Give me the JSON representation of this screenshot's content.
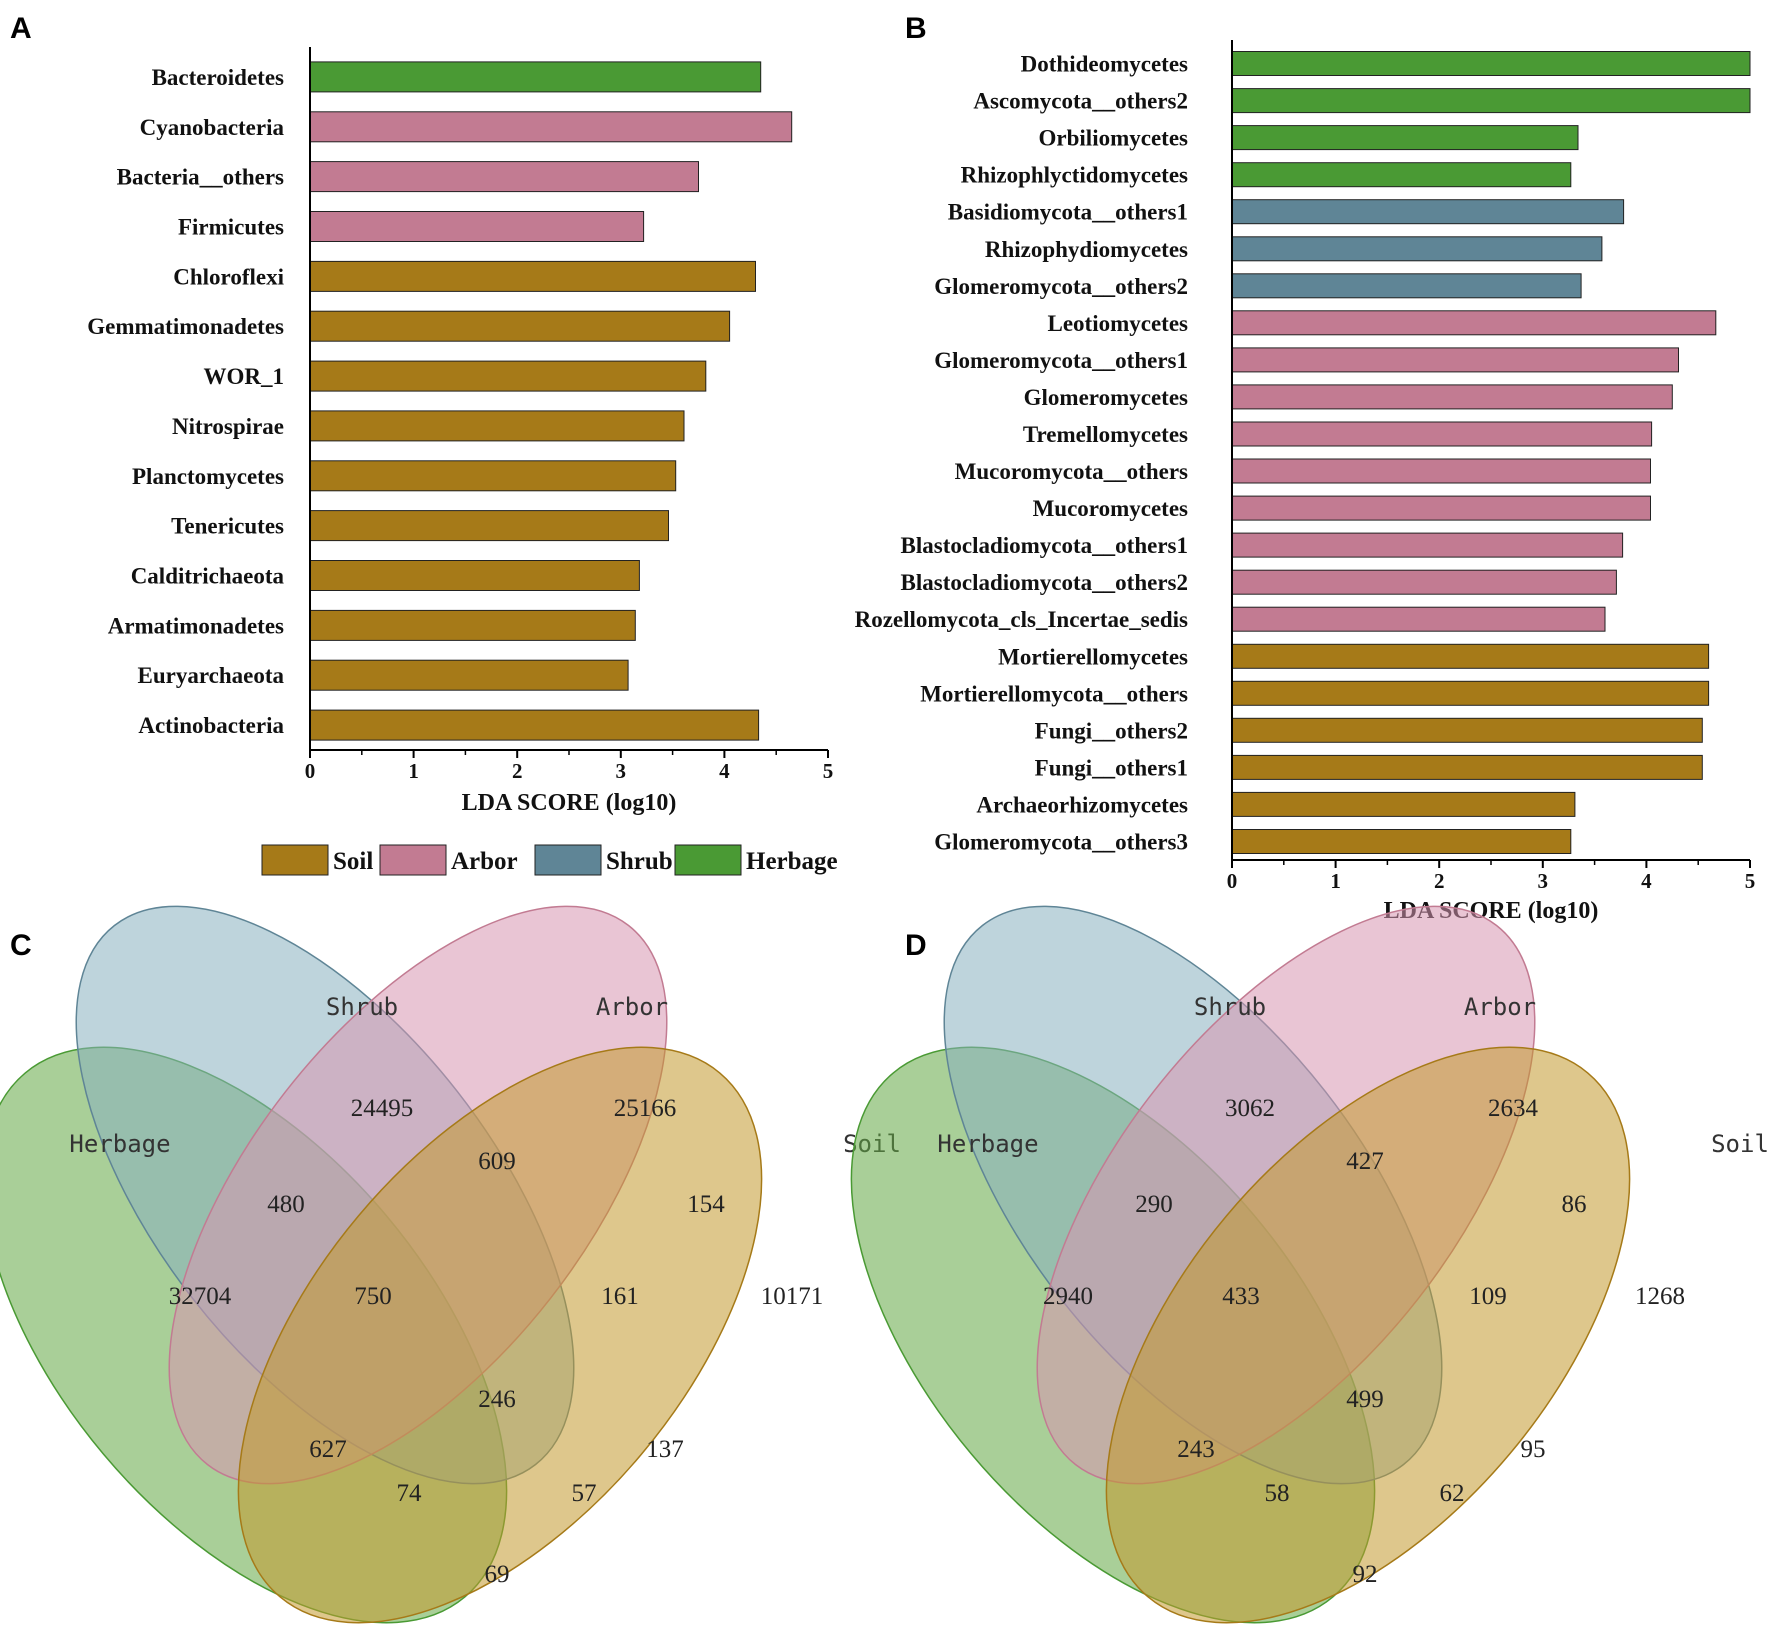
{
  "panel_labels": {
    "a": "A",
    "b": "B",
    "c": "C",
    "d": "D"
  },
  "colors": {
    "Soil": "#a67a18",
    "Arbor": "#c27b92",
    "Shrub": "#5f8596",
    "Herbage": "#4a9a34",
    "venn_Herbage": "#63a844",
    "venn_Shrub": "#88b0c0",
    "venn_Arbor": "#d795b0",
    "venn_Soil": "#c2992e"
  },
  "legend": [
    {
      "label": "Soil",
      "key": "Soil"
    },
    {
      "label": "Arbor",
      "key": "Arbor"
    },
    {
      "label": "Shrub",
      "key": "Shrub"
    },
    {
      "label": "Herbage",
      "key": "Herbage"
    }
  ],
  "chart_data": [
    {
      "panel": "A",
      "type": "bar",
      "orientation": "horizontal",
      "xlabel": "LDA SCORE (log10)",
      "xlim": [
        0,
        5
      ],
      "xticks": [
        "0",
        "1",
        "2",
        "3",
        "4",
        "5"
      ],
      "categories": [
        "Bacteroidetes",
        "Cyanobacteria",
        "Bacteria__others",
        "Firmicutes",
        "Chloroflexi",
        "Gemmatimonadetes",
        "WOR_1",
        "Nitrospirae",
        "Planctomycetes",
        "Tenericutes",
        "Calditrichaeota",
        "Armatimonadetes",
        "Euryarchaeota",
        "Actinobacteria"
      ],
      "values": [
        4.35,
        4.65,
        3.75,
        3.22,
        4.3,
        4.05,
        3.82,
        3.61,
        3.53,
        3.46,
        3.18,
        3.14,
        3.07,
        4.33
      ],
      "groups": [
        "Herbage",
        "Arbor",
        "Arbor",
        "Arbor",
        "Soil",
        "Soil",
        "Soil",
        "Soil",
        "Soil",
        "Soil",
        "Soil",
        "Soil",
        "Soil",
        "Soil"
      ]
    },
    {
      "panel": "B",
      "type": "bar",
      "orientation": "horizontal",
      "xlabel": "LDA SCORE (log10)",
      "xlim": [
        0,
        5
      ],
      "xticks": [
        "0",
        "1",
        "2",
        "3",
        "4",
        "5"
      ],
      "categories": [
        "Dothideomycetes",
        "Ascomycota__others2",
        "Orbiliomycetes",
        "Rhizophlyctidomycetes",
        "Basidiomycota__others1",
        "Rhizophydiomycetes",
        "Glomeromycota__others2",
        "Leotiomycetes",
        "Glomeromycota__others1",
        "Glomeromycetes",
        "Tremellomycetes",
        "Mucoromycota__others",
        "Mucoromycetes",
        "Blastocladiomycota__others1",
        "Blastocladiomycota__others2",
        "Rozellomycota_cls_Incertae_sedis",
        "Mortierellomycetes",
        "Mortierellomycota__others",
        "Fungi__others2",
        "Fungi__others1",
        "Archaeorhizomycetes",
        "Glomeromycota__others3"
      ],
      "values": [
        5.0,
        5.0,
        3.34,
        3.27,
        3.78,
        3.57,
        3.37,
        4.67,
        4.31,
        4.25,
        4.05,
        4.04,
        4.04,
        3.77,
        3.71,
        3.6,
        4.6,
        4.6,
        4.54,
        4.54,
        3.31,
        3.27
      ],
      "groups": [
        "Herbage",
        "Herbage",
        "Herbage",
        "Herbage",
        "Shrub",
        "Shrub",
        "Shrub",
        "Arbor",
        "Arbor",
        "Arbor",
        "Arbor",
        "Arbor",
        "Arbor",
        "Arbor",
        "Arbor",
        "Arbor",
        "Soil",
        "Soil",
        "Soil",
        "Soil",
        "Soil",
        "Soil"
      ]
    },
    {
      "panel": "C",
      "type": "venn",
      "sets": [
        "Herbage",
        "Shrub",
        "Arbor",
        "Soil"
      ],
      "regions": {
        "Herbage": "32704",
        "Shrub": "24495",
        "Arbor": "25166",
        "Soil": "10171",
        "Herbage&Shrub": "480",
        "Shrub&Arbor": "609",
        "Arbor&Soil": "154",
        "Herbage&Shrub&Arbor": "750",
        "Shrub&Arbor&Soil": "161",
        "All": "246",
        "Herbage&Arbor": "627",
        "Shrub&Soil": "137",
        "Herbage&Arbor&Soil": "74",
        "Herbage&Shrub&Soil": "57",
        "Herbage&Soil": "69"
      }
    },
    {
      "panel": "D",
      "type": "venn",
      "sets": [
        "Herbage",
        "Shrub",
        "Arbor",
        "Soil"
      ],
      "regions": {
        "Herbage": "2940",
        "Shrub": "3062",
        "Arbor": "2634",
        "Soil": "1268",
        "Herbage&Shrub": "290",
        "Shrub&Arbor": "427",
        "Arbor&Soil": "86",
        "Herbage&Shrub&Arbor": "433",
        "Shrub&Arbor&Soil": "109",
        "All": "499",
        "Herbage&Arbor": "243",
        "Shrub&Soil": "95",
        "Herbage&Arbor&Soil": "58",
        "Herbage&Shrub&Soil": "62",
        "Herbage&Soil": "92"
      }
    }
  ]
}
